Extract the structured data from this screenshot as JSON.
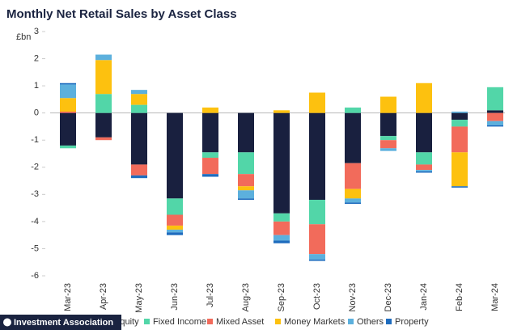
{
  "chart_data": {
    "type": "stacked-bar",
    "title": "Monthly Net Retail Sales by Asset Class",
    "y_label": "£bn",
    "categories": [
      "Mar-23",
      "Apr-23",
      "May-23",
      "Jun-23",
      "Jul-23",
      "Aug-23",
      "Sep-23",
      "Oct-23",
      "Nov-23",
      "Dec-23",
      "Jan-24",
      "Feb-24",
      "Mar-24"
    ],
    "series": [
      {
        "name": "Equity",
        "color": "#19203f",
        "values": [
          -1.2,
          -0.9,
          -1.9,
          -3.15,
          -1.45,
          -1.45,
          -3.7,
          -3.2,
          -1.85,
          -0.85,
          -1.45,
          -0.25,
          0.1
        ]
      },
      {
        "name": "Fixed Income",
        "color": "#52d6a8",
        "values": [
          -0.1,
          0.7,
          0.3,
          -0.6,
          -0.2,
          -0.8,
          -0.3,
          -0.9,
          0.2,
          -0.15,
          -0.45,
          -0.25,
          0.85
        ]
      },
      {
        "name": "Mixed Asset",
        "color": "#f26b5b",
        "values": [
          0.05,
          -0.1,
          -0.4,
          -0.4,
          -0.6,
          -0.45,
          -0.5,
          -1.1,
          -0.95,
          -0.3,
          -0.2,
          -0.95,
          -0.3
        ]
      },
      {
        "name": "Money Markets",
        "color": "#fdc10f",
        "values": [
          0.5,
          1.25,
          0.4,
          -0.15,
          0.2,
          -0.15,
          0.1,
          0.75,
          -0.35,
          0.6,
          1.1,
          -1.25,
          0
        ]
      },
      {
        "name": "Others",
        "color": "#5cb0dd",
        "values": [
          0.5,
          0.2,
          0.15,
          -0.1,
          0,
          -0.3,
          -0.2,
          -0.2,
          -0.15,
          -0.1,
          -0.05,
          0.05,
          -0.15
        ]
      },
      {
        "name": "Property",
        "color": "#1e6cbe",
        "values": [
          0.05,
          0,
          -0.1,
          -0.1,
          -0.1,
          -0.05,
          -0.1,
          -0.05,
          -0.05,
          0,
          -0.05,
          -0.05,
          -0.05
        ]
      }
    ],
    "ylim": [
      -6,
      3
    ],
    "yticks": [
      -6,
      -5,
      -4,
      -3,
      -2,
      -1,
      0,
      1,
      2,
      3
    ],
    "footer": "Investment Association"
  }
}
